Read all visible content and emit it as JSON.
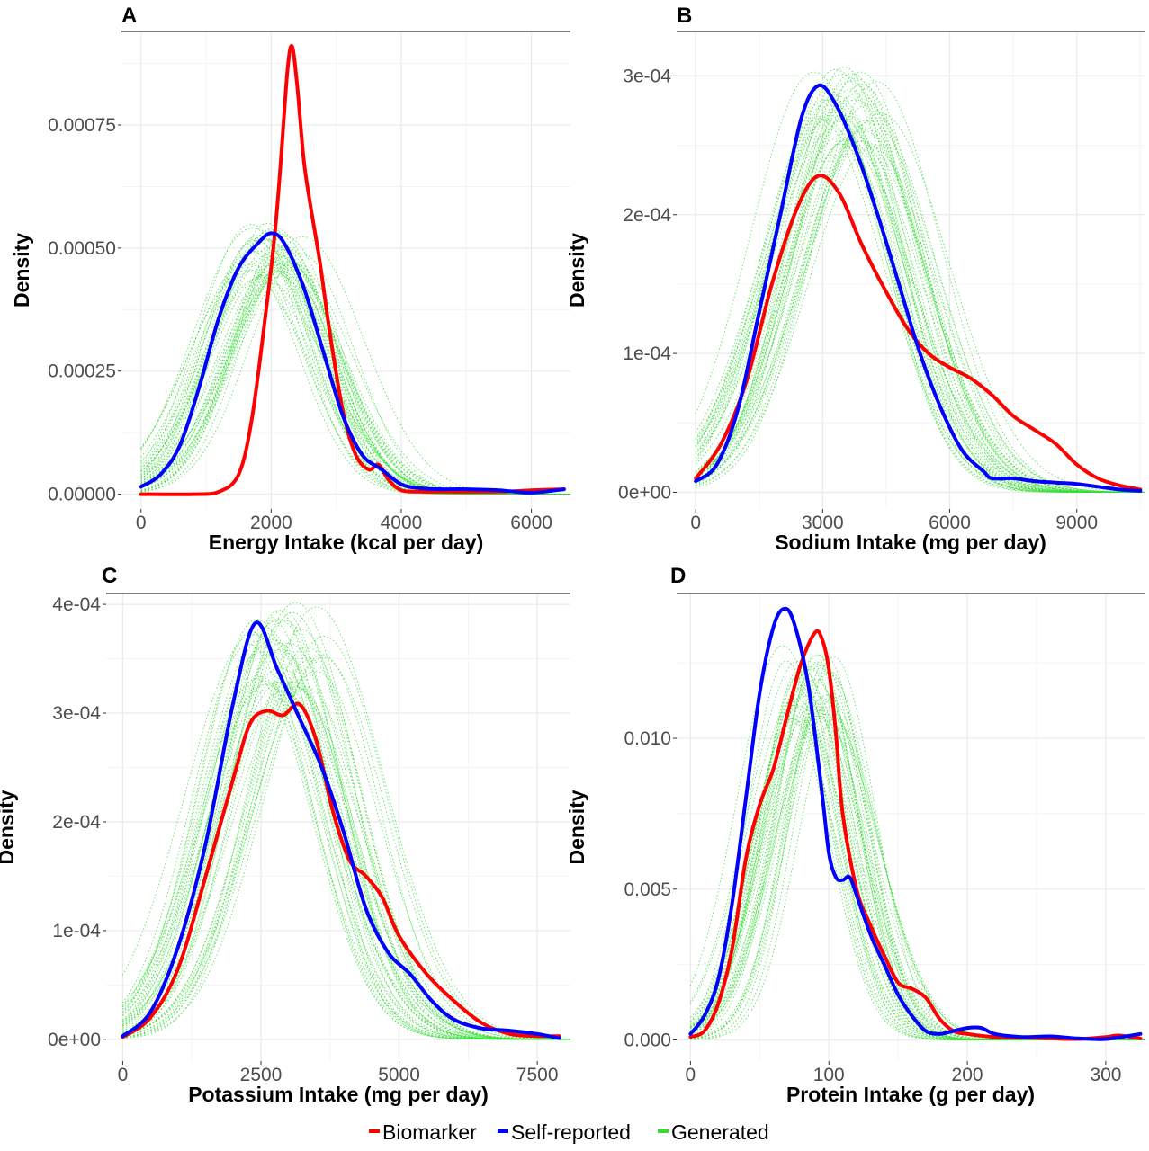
{
  "colors": {
    "biomarker": "#ff0000",
    "self_reported": "#0000ff",
    "generated": "#33dd33",
    "grid": "#ebebeb"
  },
  "legend": [
    {
      "label": "Biomarker",
      "color": "#ff0000"
    },
    {
      "label": "Self-reported",
      "color": "#0000ff"
    },
    {
      "label": "Generated",
      "color": "#33dd33"
    }
  ],
  "chart_data": [
    {
      "type": "line",
      "panel": "A",
      "xlabel": "Energy Intake (kcal per day)",
      "ylabel": "Density",
      "xlim": [
        -300,
        6600
      ],
      "ylim": [
        -3e-05,
        0.00094
      ],
      "xticks": [
        0,
        2000,
        4000,
        6000
      ],
      "xtick_labels": [
        "0",
        "2000",
        "4000",
        "6000"
      ],
      "yticks": [
        0,
        0.00025,
        0.0005,
        0.00075
      ],
      "ytick_labels": [
        "0.00000",
        "0.00025",
        "0.00050",
        "0.00075"
      ],
      "grid": true,
      "series": [
        {
          "name": "Biomarker",
          "color": "#ff0000",
          "x": [
            0,
            800,
            1200,
            1500,
            1700,
            1900,
            2050,
            2150,
            2250,
            2320,
            2400,
            2500,
            2600,
            2750,
            2900,
            3100,
            3300,
            3500,
            3650,
            3800,
            4000,
            4300,
            4600,
            5500,
            6000,
            6500
          ],
          "y": [
            0,
            0,
            5e-06,
            4e-05,
            0.00015,
            0.00035,
            0.00052,
            0.00068,
            0.00086,
            0.00091,
            0.00083,
            0.00068,
            0.00059,
            0.00047,
            0.00033,
            0.00017,
            8e-05,
            5e-05,
            6e-05,
            3e-05,
            8e-06,
            5e-06,
            5e-06,
            5e-06,
            8e-06,
            1e-05
          ]
        },
        {
          "name": "Self-reported",
          "color": "#0000ff",
          "x": [
            0,
            300,
            600,
            900,
            1200,
            1500,
            1800,
            2000,
            2200,
            2500,
            2800,
            3100,
            3400,
            3700,
            4000,
            4300,
            4600,
            5000,
            5500,
            6000,
            6500
          ],
          "y": [
            1.5e-05,
            4e-05,
            0.0001,
            0.00022,
            0.00036,
            0.00046,
            0.00051,
            0.00053,
            0.00051,
            0.00042,
            0.00029,
            0.00016,
            8e-05,
            5e-05,
            2e-05,
            1.2e-05,
            1e-05,
            1e-05,
            8e-06,
            3e-06,
            1e-05
          ]
        }
      ],
      "generated_center": 2050,
      "generated_sd": 850,
      "generated_peak": 0.0005
    },
    {
      "type": "line",
      "panel": "B",
      "xlabel": "Sodium Intake (mg per day)",
      "ylabel": "Density",
      "xlim": [
        -450,
        10600
      ],
      "ylim": [
        -1.2e-05,
        0.000332
      ],
      "xticks": [
        0,
        3000,
        6000,
        9000
      ],
      "xtick_labels": [
        "0",
        "3000",
        "6000",
        "9000"
      ],
      "yticks": [
        0,
        0.0001,
        0.0002,
        0.0003
      ],
      "ytick_labels": [
        "0e+00",
        "1e-04",
        "2e-04",
        "3e-04"
      ],
      "grid": true,
      "series": [
        {
          "name": "Biomarker",
          "color": "#ff0000",
          "x": [
            0,
            600,
            1200,
            1800,
            2400,
            2900,
            3400,
            3900,
            4400,
            5000,
            5500,
            6000,
            6500,
            7000,
            7500,
            8000,
            8500,
            9000,
            9500,
            10000,
            10500
          ],
          "y": [
            1e-05,
            3.5e-05,
            8e-05,
            0.00015,
            0.000205,
            0.000228,
            0.000215,
            0.00018,
            0.00015,
            0.000118,
            0.0001,
            9e-05,
            8.2e-05,
            7e-05,
            5.5e-05,
            4.5e-05,
            3.5e-05,
            2e-05,
            1e-05,
            5e-06,
            2e-06
          ]
        },
        {
          "name": "Self-reported",
          "color": "#0000ff",
          "x": [
            0,
            500,
            1000,
            1500,
            2000,
            2500,
            2900,
            3300,
            3800,
            4300,
            4800,
            5300,
            5800,
            6300,
            6800,
            7000,
            7500,
            8000,
            8500,
            9000,
            9500,
            10000,
            10500
          ],
          "y": [
            8e-06,
            2e-05,
            6e-05,
            0.00013,
            0.0002,
            0.00027,
            0.000293,
            0.00028,
            0.000245,
            0.0002,
            0.00015,
            0.0001,
            6e-05,
            3e-05,
            1.5e-05,
            1e-05,
            1e-05,
            8e-06,
            7e-06,
            6e-06,
            4e-06,
            2e-06,
            1e-06
          ]
        }
      ],
      "generated_center": 3500,
      "generated_sd": 1500,
      "generated_peak": 0.00028
    },
    {
      "type": "line",
      "panel": "C",
      "xlabel": "Potassium Intake  (mg per day)",
      "ylabel": "Density",
      "xlim": [
        -300,
        8100
      ],
      "ylim": [
        -2e-05,
        0.00041
      ],
      "xticks": [
        0,
        2500,
        5000,
        7500
      ],
      "xtick_labels": [
        "0",
        "2500",
        "5000",
        "7500"
      ],
      "yticks": [
        0,
        0.0001,
        0.0002,
        0.0003,
        0.0004
      ],
      "ytick_labels": [
        "0e+00",
        "1e-04",
        "2e-04",
        "3e-04",
        "4e-04"
      ],
      "grid": true,
      "series": [
        {
          "name": "Biomarker",
          "color": "#ff0000",
          "x": [
            0,
            500,
            1000,
            1500,
            2000,
            2300,
            2600,
            2900,
            3200,
            3500,
            3800,
            4100,
            4400,
            4700,
            5000,
            5500,
            6000,
            6500,
            7000,
            7500,
            7900
          ],
          "y": [
            2e-06,
            2e-05,
            6.5e-05,
            0.00015,
            0.00024,
            0.00029,
            0.000302,
            0.000298,
            0.000308,
            0.000275,
            0.00021,
            0.000165,
            0.00015,
            0.00013,
            9.5e-05,
            6e-05,
            3.5e-05,
            1.5e-05,
            5e-06,
            3e-06,
            3e-06
          ]
        },
        {
          "name": "Self-reported",
          "color": "#0000ff",
          "x": [
            0,
            500,
            1000,
            1500,
            2000,
            2400,
            2800,
            3200,
            3600,
            4000,
            4400,
            4800,
            5200,
            5600,
            6000,
            6500,
            7000,
            7500,
            7900
          ],
          "y": [
            3e-06,
            2.5e-05,
            8.5e-05,
            0.00018,
            0.00031,
            0.000383,
            0.00034,
            0.000295,
            0.00025,
            0.00019,
            0.00012,
            8e-05,
            6e-05,
            3.5e-05,
            1.8e-05,
            1e-05,
            8e-06,
            5e-06,
            1e-06
          ]
        }
      ],
      "generated_center": 3000,
      "generated_sd": 1100,
      "generated_peak": 0.000365
    },
    {
      "type": "line",
      "panel": "D",
      "xlabel": "Protein Intake (g per day)",
      "ylabel": "Density",
      "xlim": [
        -10,
        328
      ],
      "ylim": [
        -0.0007,
        0.0148
      ],
      "xticks": [
        0,
        100,
        200,
        300
      ],
      "xtick_labels": [
        "0",
        "100",
        "200",
        "300"
      ],
      "yticks": [
        0,
        0.005,
        0.01
      ],
      "ytick_labels": [
        "0.000",
        "0.005",
        "0.010"
      ],
      "grid": true,
      "series": [
        {
          "name": "Biomarker",
          "color": "#ff0000",
          "x": [
            0,
            10,
            20,
            30,
            40,
            50,
            60,
            70,
            80,
            90,
            95,
            100,
            105,
            110,
            120,
            130,
            140,
            150,
            160,
            170,
            180,
            190,
            200,
            220,
            240,
            260,
            280,
            300,
            310,
            325
          ],
          "y": [
            0.0001,
            0.0003,
            0.0012,
            0.003,
            0.006,
            0.0078,
            0.009,
            0.0108,
            0.0125,
            0.0135,
            0.0133,
            0.0123,
            0.0102,
            0.0075,
            0.005,
            0.0038,
            0.0028,
            0.0019,
            0.0017,
            0.0014,
            0.0007,
            0.0003,
            0.0002,
            0.0001,
            8e-05,
            5e-05,
            3e-05,
            0.0001,
            0.00015,
            5e-05
          ]
        },
        {
          "name": "Self-reported",
          "color": "#0000ff",
          "x": [
            0,
            10,
            20,
            30,
            40,
            50,
            60,
            68,
            75,
            85,
            95,
            100,
            105,
            110,
            115,
            120,
            130,
            140,
            150,
            160,
            170,
            180,
            190,
            200,
            210,
            220,
            240,
            260,
            280,
            300,
            325
          ],
          "y": [
            0.0002,
            0.0008,
            0.002,
            0.0045,
            0.008,
            0.0115,
            0.0137,
            0.0143,
            0.0138,
            0.0118,
            0.0082,
            0.0062,
            0.0054,
            0.0053,
            0.0054,
            0.0048,
            0.0035,
            0.0025,
            0.0015,
            0.0008,
            0.0003,
            0.0002,
            0.0003,
            0.0004,
            0.0004,
            0.0002,
            0.0001,
            0.00012,
            5e-05,
            3e-05,
            0.0002
          ]
        }
      ],
      "generated_center": 85,
      "generated_sd": 32,
      "generated_peak": 0.0118
    }
  ]
}
